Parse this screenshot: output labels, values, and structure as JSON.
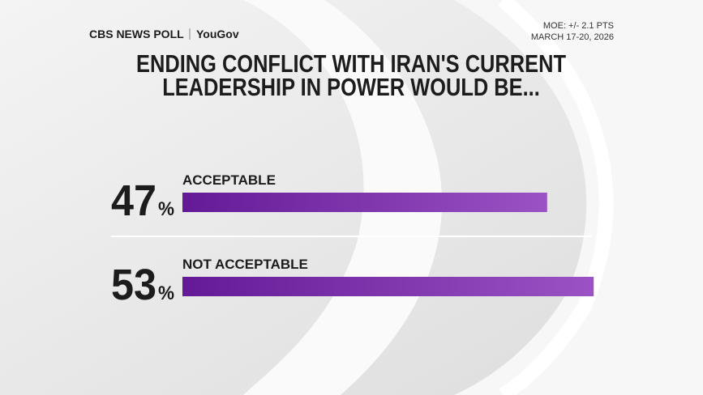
{
  "header": {
    "brand": "CBS NEWS POLL",
    "partner": "YouGov",
    "moe": "MOE: +/- 2.1 PTS",
    "dates": "MARCH 17-20, 2026"
  },
  "chart_data": {
    "type": "bar",
    "title": "ENDING CONFLICT WITH IRAN'S CURRENT LEADERSHIP IN POWER WOULD BE...",
    "categories": [
      "ACCEPTABLE",
      "NOT ACCEPTABLE"
    ],
    "values": [
      47,
      53
    ],
    "unit": "%",
    "colors": [
      "#641a96",
      "#9a52c4"
    ]
  }
}
